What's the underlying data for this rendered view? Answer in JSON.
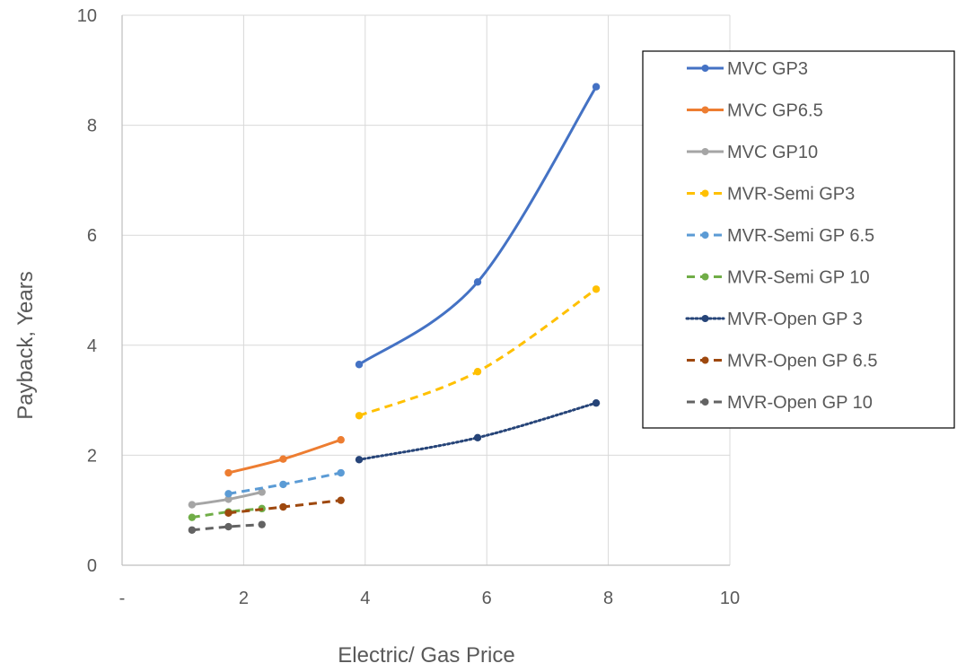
{
  "chart_data": {
    "type": "scatter",
    "title": "",
    "xlabel": "Electric/ Gas Price",
    "ylabel": "Payback, Years",
    "xlim": [
      0,
      10
    ],
    "ylim": [
      0,
      10
    ],
    "x_ticks": [
      0,
      2,
      4,
      6,
      8,
      10
    ],
    "x_tick_labels": [
      "-",
      "2",
      "4",
      "6",
      "8",
      "10"
    ],
    "y_ticks": [
      0,
      2,
      4,
      6,
      8,
      10
    ],
    "y_tick_labels": [
      "0",
      "2",
      "4",
      "6",
      "8",
      "10"
    ],
    "grid": true,
    "legend_position": "right",
    "series": [
      {
        "name": "MVC GP3",
        "color": "#4472C4",
        "dash": "solid",
        "smooth": true,
        "x": [
          3.9,
          5.85,
          7.8
        ],
        "y": [
          3.65,
          5.15,
          8.7
        ]
      },
      {
        "name": "MVC GP6.5",
        "color": "#ED7D31",
        "dash": "solid",
        "smooth": true,
        "x": [
          1.75,
          2.65,
          3.6
        ],
        "y": [
          1.68,
          1.93,
          2.28
        ]
      },
      {
        "name": "MVC GP10",
        "color": "#A5A5A5",
        "dash": "solid",
        "smooth": true,
        "x": [
          1.15,
          1.75,
          2.3
        ],
        "y": [
          1.1,
          1.2,
          1.33
        ]
      },
      {
        "name": "MVR-Semi GP3",
        "color": "#FFC000",
        "dash": "dash",
        "smooth": true,
        "x": [
          3.9,
          5.85,
          7.8
        ],
        "y": [
          2.72,
          3.52,
          5.02
        ]
      },
      {
        "name": "MVR-Semi GP 6.5",
        "color": "#5B9BD5",
        "dash": "dash",
        "smooth": true,
        "x": [
          1.75,
          2.65,
          3.6
        ],
        "y": [
          1.3,
          1.47,
          1.68
        ]
      },
      {
        "name": "MVR-Semi GP 10",
        "color": "#70AD47",
        "dash": "dash",
        "smooth": true,
        "x": [
          1.15,
          1.75,
          2.3
        ],
        "y": [
          0.87,
          0.97,
          1.03
        ]
      },
      {
        "name": "MVR-Open GP 3",
        "color": "#264478",
        "dash": "dot",
        "smooth": true,
        "x": [
          3.9,
          5.85,
          7.8
        ],
        "y": [
          1.92,
          2.32,
          2.95
        ]
      },
      {
        "name": "MVR-Open GP 6.5",
        "color": "#9E480E",
        "dash": "dash",
        "smooth": true,
        "x": [
          1.75,
          2.65,
          3.6
        ],
        "y": [
          0.95,
          1.06,
          1.18
        ]
      },
      {
        "name": "MVR-Open GP 10",
        "color": "#636363",
        "dash": "dash",
        "smooth": true,
        "x": [
          1.15,
          1.75,
          2.3
        ],
        "y": [
          0.64,
          0.7,
          0.74
        ]
      }
    ]
  }
}
